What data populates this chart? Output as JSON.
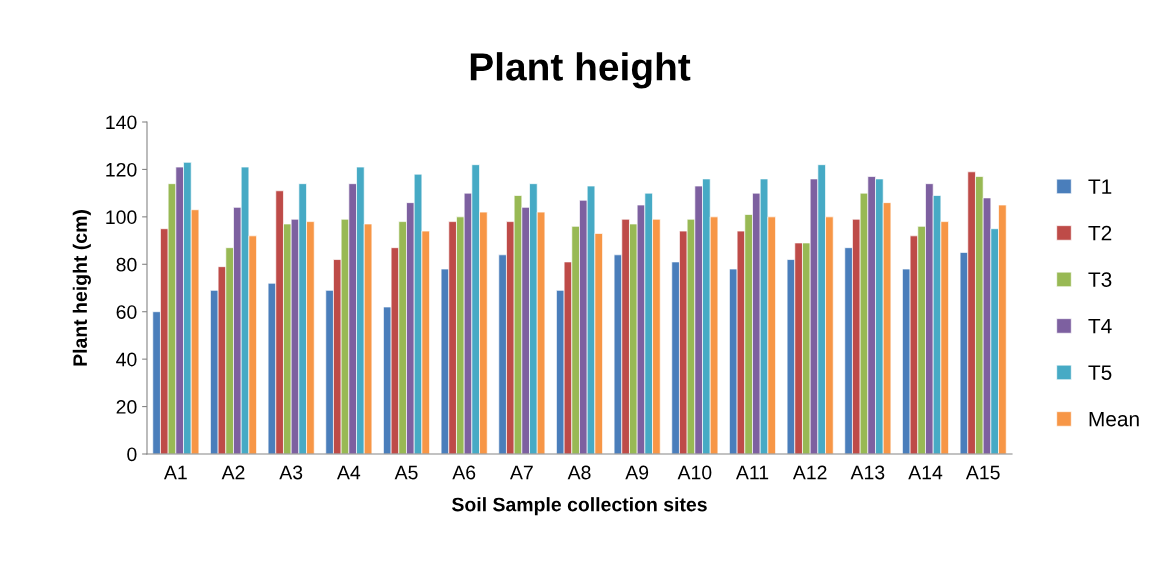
{
  "chart_data": {
    "type": "bar",
    "title": "Plant height",
    "xlabel": "Soil Sample collection sites",
    "ylabel": "Plant height (cm)",
    "categories": [
      "A1",
      "A2",
      "A3",
      "A4",
      "A5",
      "A6",
      "A7",
      "A8",
      "A9",
      "A10",
      "A11",
      "A12",
      "A13",
      "A14",
      "A15"
    ],
    "series": [
      {
        "name": "T1",
        "color": "#4a7ebb",
        "values": [
          60,
          69,
          72,
          69,
          62,
          78,
          84,
          69,
          84,
          81,
          78,
          82,
          87,
          78,
          85
        ]
      },
      {
        "name": "T2",
        "color": "#be4b48",
        "values": [
          95,
          79,
          111,
          82,
          87,
          98,
          98,
          81,
          99,
          94,
          94,
          89,
          99,
          92,
          119
        ]
      },
      {
        "name": "T3",
        "color": "#98b954",
        "values": [
          114,
          87,
          97,
          99,
          98,
          100,
          109,
          96,
          97,
          99,
          101,
          89,
          110,
          96,
          117
        ]
      },
      {
        "name": "T4",
        "color": "#7d60a0",
        "values": [
          121,
          104,
          99,
          114,
          106,
          110,
          104,
          107,
          105,
          113,
          110,
          116,
          117,
          114,
          108
        ]
      },
      {
        "name": "T5",
        "color": "#46aac5",
        "values": [
          123,
          121,
          114,
          121,
          118,
          122,
          114,
          113,
          110,
          116,
          116,
          122,
          116,
          109,
          95
        ]
      },
      {
        "name": "Mean",
        "color": "#f79646",
        "values": [
          103,
          92,
          98,
          97,
          94,
          102,
          102,
          93,
          99,
          100,
          100,
          100,
          106,
          98,
          105
        ]
      }
    ],
    "ylim": [
      0,
      140
    ],
    "yticks": [
      0,
      20,
      40,
      60,
      80,
      100,
      120,
      140
    ],
    "grid": false,
    "legend": "right"
  }
}
